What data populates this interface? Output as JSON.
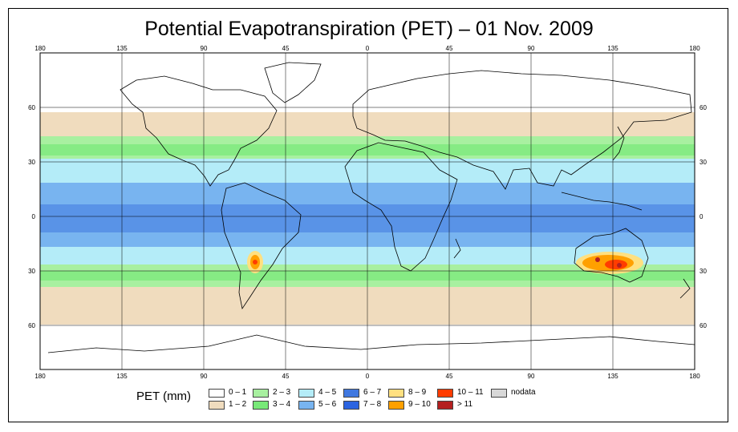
{
  "title": "Potential Evapotranspiration (PET) – 01 Nov. 2009",
  "map": {
    "lon_ticks": [
      "180",
      "135",
      "90",
      "45",
      "0",
      "45",
      "90",
      "135",
      "180"
    ],
    "lat_ticks": [
      "60",
      "30",
      "0",
      "30",
      "60"
    ]
  },
  "legend": {
    "title": "PET (mm)",
    "items": [
      {
        "label": "0 – 1",
        "color": "#ffffff"
      },
      {
        "label": "1 – 2",
        "color": "#f0dcbe"
      },
      {
        "label": "2 – 3",
        "color": "#a8f0a0"
      },
      {
        "label": "3 – 4",
        "color": "#78e878"
      },
      {
        "label": "4 – 5",
        "color": "#b4ecf8"
      },
      {
        "label": "5 – 6",
        "color": "#78b4f0"
      },
      {
        "label": "6 – 7",
        "color": "#4078e0"
      },
      {
        "label": "7 – 8",
        "color": "#2c64e0"
      },
      {
        "label": "8 – 9",
        "color": "#ffe080"
      },
      {
        "label": "9 – 10",
        "color": "#ffa000"
      },
      {
        "label": "10 – 11",
        "color": "#ff3c00"
      },
      {
        "label": "> 11",
        "color": "#b42020"
      },
      {
        "label": "nodata",
        "color": "#d8d8d8"
      }
    ]
  }
}
